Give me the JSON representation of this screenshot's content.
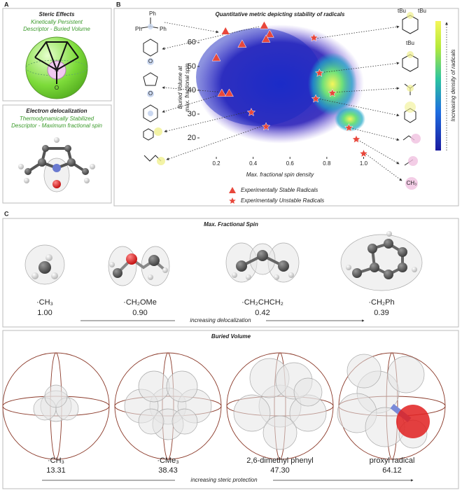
{
  "panel_a": {
    "label": "A",
    "steric": {
      "title": "Steric Effects",
      "line1": "Kinetically Persistent",
      "line2": "Descriptor - Buried Volume"
    },
    "delocalization": {
      "title": "Electron delocalization",
      "line1": "Thermodynamically Stabilized",
      "line2": "Descriptor - Maximum fractional spin"
    }
  },
  "panel_b": {
    "label": "B",
    "chart": {
      "type": "scatter",
      "title": "Quantitative metric depicting stability of radicals",
      "xlabel": "Max. fractional spin density",
      "ylabel": [
        "Buried Volume at",
        "max. fractional spin"
      ],
      "xlim": [
        0.12,
        1.04
      ],
      "ylim": [
        15,
        72
      ],
      "xticks": [
        0.2,
        0.4,
        0.6,
        0.8,
        {
          "value": 1,
          "label": "1.0"
        }
      ],
      "yticks": [
        20,
        30,
        40,
        50,
        60
      ],
      "colorbar_label": "Increasing density of radicals",
      "series": [
        {
          "name": "Experimentally Stable Radicals",
          "marker": "triangle",
          "color": "#e8473b",
          "x": [
            0.25,
            0.46,
            0.49,
            0.47,
            0.34,
            0.2,
            0.23,
            0.27
          ],
          "values": [
            64.8,
            67.2,
            63.6,
            61.5,
            59.4,
            53.7,
            38.8,
            38.8
          ]
        },
        {
          "name": "Experimentally Unstable Radicals",
          "marker": "star",
          "color": "#e8473b",
          "x": [
            0.73,
            0.76,
            0.83,
            0.74,
            0.39,
            0.47,
            0.92,
            0.96,
            1.0
          ],
          "values": [
            62,
            47.2,
            38.8,
            36.4,
            30.7,
            24.7,
            24.2,
            19.4,
            13.4
          ]
        }
      ]
    },
    "structure_labels": [
      "Ph",
      "Ph",
      "Ph",
      "tBu",
      "tBu",
      "tBu",
      "CH₃"
    ]
  },
  "panel_c": {
    "label": "C",
    "spin": {
      "title": "Max. Fractional Spin",
      "arrow": "increasing delocalization",
      "items": [
        {
          "name": "·CH₃",
          "value": "1.00"
        },
        {
          "name": "·CH₂OMe",
          "value": "0.90"
        },
        {
          "name": "·CH₂CHCH₂",
          "value": "0.42"
        },
        {
          "name": "·CH₂Ph",
          "value": "0.39"
        }
      ]
    },
    "buried": {
      "title": "Buried Volume",
      "arrow": "increasing steric protection",
      "items": [
        {
          "name": "·CH₃",
          "value": "13.31"
        },
        {
          "name": "·CMe₃",
          "value": "38.43"
        },
        {
          "name": "2,6-dimethyl phenyl",
          "value": "47.30"
        },
        {
          "name": "proxyl radical",
          "value": "64.12"
        }
      ]
    }
  }
}
